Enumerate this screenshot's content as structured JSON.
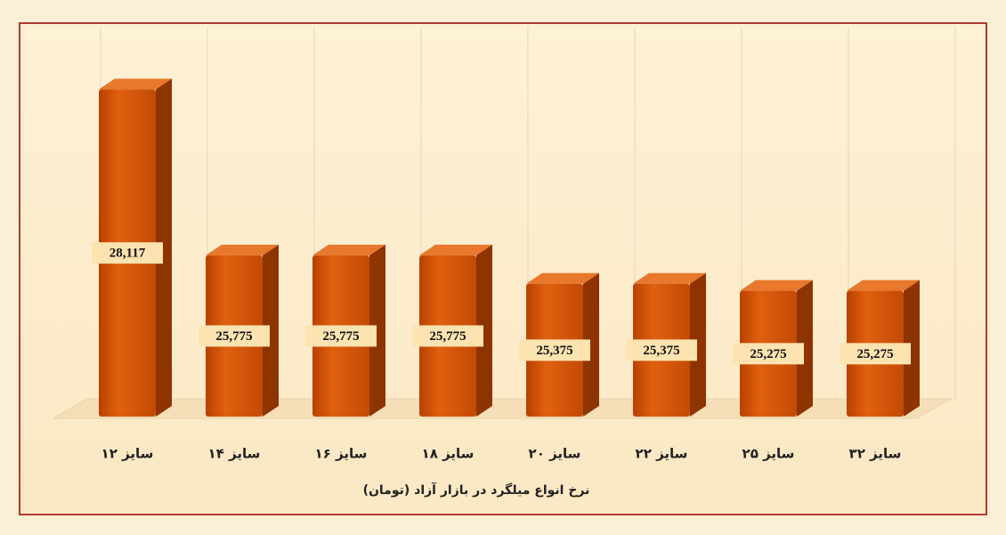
{
  "chart_data": {
    "type": "bar3d",
    "title": "نرخ انواع میلگرد در بازار آزاد  (تومان)",
    "categories": [
      "سایز ۱۲",
      "سایز ۱۴",
      "سایز ۱۶",
      "سایز ۱۸",
      "سایز ۲۰",
      "سایز ۲۲",
      "سایز ۲۵",
      "سایز ۳۲"
    ],
    "values": [
      28117,
      25775,
      25775,
      25775,
      25375,
      25375,
      25275,
      25275
    ],
    "value_labels": [
      "28,117",
      "25,775",
      "25,775",
      "25,775",
      "25,375",
      "25,375",
      "25,275",
      "25,275"
    ],
    "color": "#d35400",
    "ylim": [
      23500,
      28800
    ],
    "grid": true
  }
}
